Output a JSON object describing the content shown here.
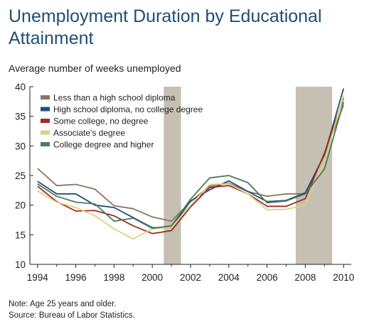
{
  "chart_data": {
    "type": "line",
    "title": "Unemployment Duration by Educational Attainment",
    "ylabel": "Average number of weeks unemployed",
    "xlabel": "",
    "xlim": [
      1993.6,
      2010.4
    ],
    "ylim": [
      10,
      40
    ],
    "x_ticks": [
      "1994",
      "1996",
      "1998",
      "2000",
      "2002",
      "2004",
      "2006",
      "2008",
      "2010"
    ],
    "y_ticks": [
      "10",
      "15",
      "20",
      "25",
      "30",
      "35",
      "40"
    ],
    "grid": false,
    "legend_position": "top-left",
    "shaded_periods": [
      [
        2000.6,
        2001.5
      ],
      [
        2007.5,
        2009.4
      ]
    ],
    "x": [
      1994,
      1995,
      1996,
      1997,
      1998,
      1999,
      2000,
      2001,
      2002,
      2003,
      2004,
      2005,
      2006,
      2007,
      2008,
      2009,
      2010
    ],
    "series": [
      {
        "name": "Less than a high school diploma",
        "color": "#8b7462",
        "values": [
          26.2,
          23.3,
          23.5,
          22.7,
          19.9,
          19.4,
          18.0,
          17.3,
          20.6,
          23.2,
          23.7,
          22.3,
          21.5,
          21.9,
          21.9,
          28.5,
          36.9
        ]
      },
      {
        "name": "High school diploma, no college degree",
        "color": "#1d4f7a",
        "values": [
          24.0,
          21.9,
          21.9,
          20.0,
          19.6,
          17.9,
          16.2,
          16.2,
          20.7,
          22.6,
          24.1,
          22.3,
          20.6,
          20.8,
          22.1,
          28.5,
          39.7
        ]
      },
      {
        "name": "Some college, no degree",
        "color": "#a22b28",
        "values": [
          23.2,
          20.6,
          19.0,
          19.1,
          18.2,
          16.5,
          15.2,
          15.7,
          19.7,
          23.0,
          23.3,
          21.9,
          19.8,
          19.8,
          21.1,
          28.8,
          38.1
        ]
      },
      {
        "name": "Associate's degree",
        "color": "#dcd27f",
        "values": [
          22.4,
          20.5,
          19.6,
          18.2,
          16.0,
          14.3,
          16.0,
          16.2,
          20.0,
          23.5,
          23.6,
          21.9,
          19.2,
          19.3,
          20.0,
          27.5,
          38.5
        ]
      },
      {
        "name": "College degree and higher",
        "color": "#4a7a5e",
        "values": [
          23.6,
          21.5,
          20.5,
          20.2,
          17.3,
          17.8,
          16.1,
          16.5,
          21.0,
          24.6,
          25.0,
          23.8,
          20.4,
          20.7,
          21.9,
          26.1,
          37.4
        ]
      }
    ]
  },
  "note": "Note: Age 25 years and older.",
  "source": "Source: Bureau of Labor Statistics."
}
